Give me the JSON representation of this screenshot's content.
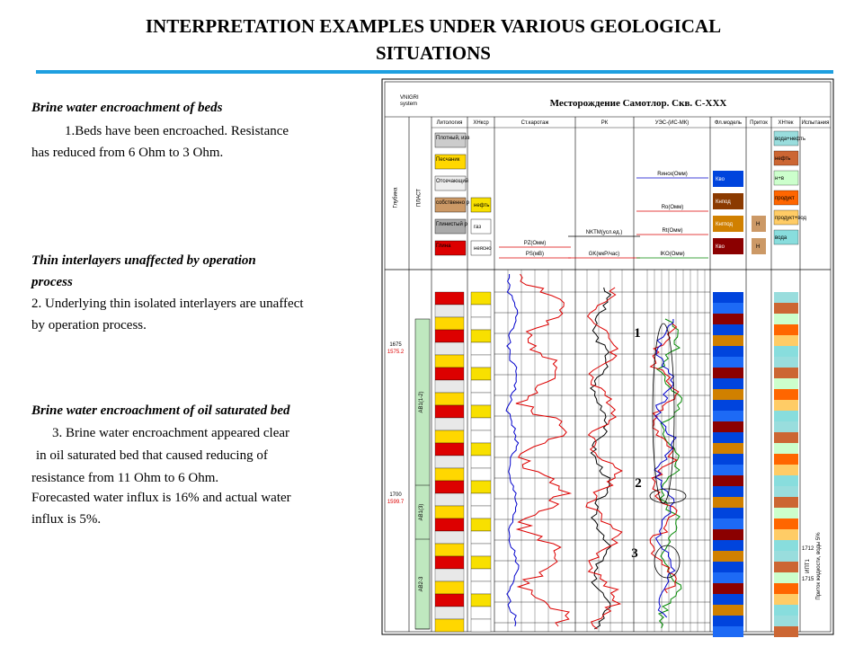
{
  "title": [
    "INTERPRETATION EXAMPLES UNDER VARIOUS GEOLOGICAL",
    "SITUATIONS"
  ],
  "sections": [
    {
      "heading": [
        "Brine water encroachment of beds"
      ],
      "lines": [
        "1.Beds have been encroached. Resistance",
        "has reduced from 6 Ohm to 3 Ohm."
      ]
    },
    {
      "heading": [
        "Thin interlayers unaffected by operation",
        "process"
      ],
      "lines": [
        "2. Underlying thin isolated interlayers are unaffect",
        "by operation process."
      ]
    },
    {
      "heading": [
        "Brine water encroachment of oil saturated bed"
      ],
      "lines": [
        "3. Brine water encroachment appeared clear",
        "in oil saturated bed that caused reducing of",
        "resistance from 11 Ohm to 6 Ohm.",
        "Forecasted water influx is 16% and actual water",
        "influx is  5%."
      ]
    }
  ],
  "log": {
    "logo": [
      "VNIGRI",
      "system"
    ],
    "title": "Месторождение Самотлор. Скв. С-XXX",
    "columns": [
      "Глубина",
      "ПЛАСТ",
      "Литология",
      "ХНкср",
      "Ст.каротаж",
      "РК",
      "УЭС-(ИС-МК)",
      "Фл.модель",
      "Приток",
      "ХНтек",
      "Испытания"
    ],
    "lithology_legend": [
      "Плотный, изв",
      "Песчаник",
      "Отсечающий",
      "собственно р",
      "Глинистый р",
      "Глина"
    ],
    "saturation_legend": [
      "нефть",
      "газ",
      "неясно"
    ],
    "curves": [
      "PZ(Омм)",
      "PS(мВ)",
      "NKTM(усл.ед.)",
      "GK(мкР/час)",
      "Rинск(Омм)",
      "Ro(Омм)",
      "Rt(Омм)",
      "IKO(Омм)"
    ],
    "fluid_legend": [
      "Кво",
      "Кнпод",
      "Кнгпод",
      "Кво"
    ],
    "inflow_legend": [
      "Н",
      "Н"
    ],
    "current_legend": [
      "вода+нефть",
      "нефть",
      "н+в",
      "продукт",
      "продукт+вод",
      "вода"
    ],
    "depths": [
      {
        "depth": "1675",
        "abs": "1575.2"
      },
      {
        "depth": "1700",
        "abs": "1599.7"
      }
    ],
    "layers": [
      "АВ1(1-2)",
      "АВ1(3)",
      "АВ2-3"
    ],
    "markers": [
      "1",
      "2",
      "3"
    ],
    "test_depths": [
      "1712",
      "1715"
    ],
    "test_interval": "ИПТ1",
    "test_result": "Приток жидкости, воды 5%"
  }
}
